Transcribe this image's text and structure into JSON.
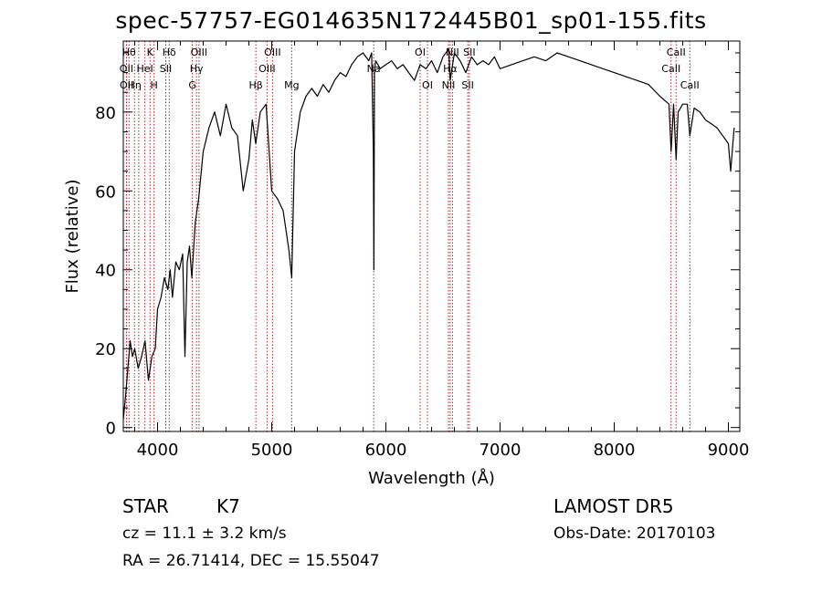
{
  "title": "spec-57757-EG014635N172445B01_sp01-155.fits",
  "info": {
    "object_class": "STAR",
    "subclass": "K7",
    "survey": "LAMOST DR5",
    "cz": "cz = 11.1 ± 3.2 km/s",
    "obs_date": "Obs-Date: 20170103",
    "coords": "RA =  26.71414, DEC =  15.55047"
  },
  "chart_data": {
    "type": "line",
    "title": "spec-57757-EG014635N172445B01_sp01-155.fits",
    "xlabel": "Wavelength (Å)",
    "ylabel": "Flux (relative)",
    "xlim": [
      3700,
      9100
    ],
    "ylim": [
      -1,
      98
    ],
    "xticks": [
      4000,
      5000,
      6000,
      7000,
      8000,
      9000
    ],
    "yticks": [
      0,
      20,
      40,
      60,
      80
    ],
    "grid": false,
    "line_color": "#000000",
    "marker_color": "#b22222",
    "series": [
      {
        "x": [
          3700,
          3720,
          3740,
          3760,
          3780,
          3800,
          3830,
          3860,
          3890,
          3920,
          3950,
          3980,
          4000,
          4030,
          4060,
          4090,
          4110,
          4130,
          4160,
          4190,
          4220,
          4240,
          4260,
          4280,
          4300,
          4330,
          4360,
          4400,
          4450,
          4500,
          4550,
          4600,
          4650,
          4700,
          4750,
          4800,
          4830,
          4860,
          4900,
          4950,
          5000,
          5050,
          5100,
          5150,
          5175,
          5200,
          5250,
          5300,
          5350,
          5400,
          5450,
          5500,
          5550,
          5600,
          5650,
          5700,
          5750,
          5800,
          5850,
          5875,
          5890,
          5895,
          5900,
          5910,
          5950,
          6000,
          6050,
          6100,
          6150,
          6200,
          6250,
          6300,
          6350,
          6400,
          6450,
          6500,
          6550,
          6563,
          6600,
          6650,
          6700,
          6750,
          6800,
          6850,
          6900,
          6950,
          7000,
          7100,
          7200,
          7300,
          7400,
          7500,
          7600,
          7700,
          7800,
          7900,
          8000,
          8100,
          8200,
          8300,
          8400,
          8480,
          8498,
          8520,
          8542,
          8560,
          8600,
          8640,
          8662,
          8700,
          8750,
          8800,
          8850,
          8900,
          8950,
          9000,
          9020,
          9050
        ],
        "y": [
          2,
          8,
          15,
          22,
          18,
          20,
          15,
          18,
          22,
          12,
          18,
          20,
          30,
          33,
          38,
          35,
          40,
          33,
          42,
          40,
          44,
          18,
          42,
          46,
          38,
          52,
          58,
          70,
          76,
          80,
          74,
          82,
          76,
          74,
          60,
          68,
          78,
          72,
          80,
          82,
          60,
          58,
          55,
          45,
          38,
          70,
          80,
          84,
          86,
          84,
          87,
          85,
          88,
          90,
          89,
          92,
          94,
          95,
          93,
          95,
          70,
          40,
          90,
          93,
          91,
          92,
          93,
          91,
          92,
          90,
          88,
          92,
          91,
          93,
          90,
          94,
          96,
          88,
          95,
          93,
          90,
          94,
          92,
          93,
          92,
          94,
          91,
          92,
          93,
          94,
          93,
          95,
          94,
          93,
          92,
          91,
          90,
          89,
          88,
          87,
          84,
          82,
          70,
          82,
          68,
          80,
          82,
          82,
          74,
          81,
          80,
          78,
          77,
          76,
          74,
          72,
          65,
          76
        ]
      }
    ],
    "line_markers": [
      {
        "wl": 3750,
        "label": "Hθ",
        "row": 0
      },
      {
        "wl": 3727,
        "label": "OII",
        "row": 1
      },
      {
        "wl": 3729,
        "label": "OII",
        "row": 2
      },
      {
        "wl": 3798,
        "label": "Hη",
        "row": 2
      },
      {
        "wl": 3835,
        "label": "",
        "row": -1
      },
      {
        "wl": 3889,
        "label": "HeI",
        "row": 1
      },
      {
        "wl": 3934,
        "label": "K",
        "row": 0
      },
      {
        "wl": 3969,
        "label": "H",
        "row": 2
      },
      {
        "wl": 4072,
        "label": "SII",
        "row": 1
      },
      {
        "wl": 4102,
        "label": "Hδ",
        "row": 0
      },
      {
        "wl": 4305,
        "label": "G",
        "row": 2
      },
      {
        "wl": 4341,
        "label": "Hγ",
        "row": 1
      },
      {
        "wl": 4363,
        "label": "OIII",
        "row": 0
      },
      {
        "wl": 4861,
        "label": "Hβ",
        "row": 2
      },
      {
        "wl": 4959,
        "label": "OIII",
        "row": 1
      },
      {
        "wl": 5007,
        "label": "OIII",
        "row": 0
      },
      {
        "wl": 5175,
        "label": "Mg",
        "row": 2
      },
      {
        "wl": 5893,
        "label": "Na",
        "row": 1
      },
      {
        "wl": 6300,
        "label": "OI",
        "row": 0
      },
      {
        "wl": 6364,
        "label": "OI",
        "row": 2
      },
      {
        "wl": 6548,
        "label": "NII",
        "row": 2
      },
      {
        "wl": 6563,
        "label": "Hα",
        "row": 1
      },
      {
        "wl": 6583,
        "label": "NII",
        "row": 0
      },
      {
        "wl": 6717,
        "label": "SII",
        "row": 2
      },
      {
        "wl": 6731,
        "label": "SII",
        "row": 0
      },
      {
        "wl": 8498,
        "label": "CaII",
        "row": 1
      },
      {
        "wl": 8542,
        "label": "CaII",
        "row": 0
      },
      {
        "wl": 8662,
        "label": "CaII",
        "row": 2
      }
    ]
  }
}
